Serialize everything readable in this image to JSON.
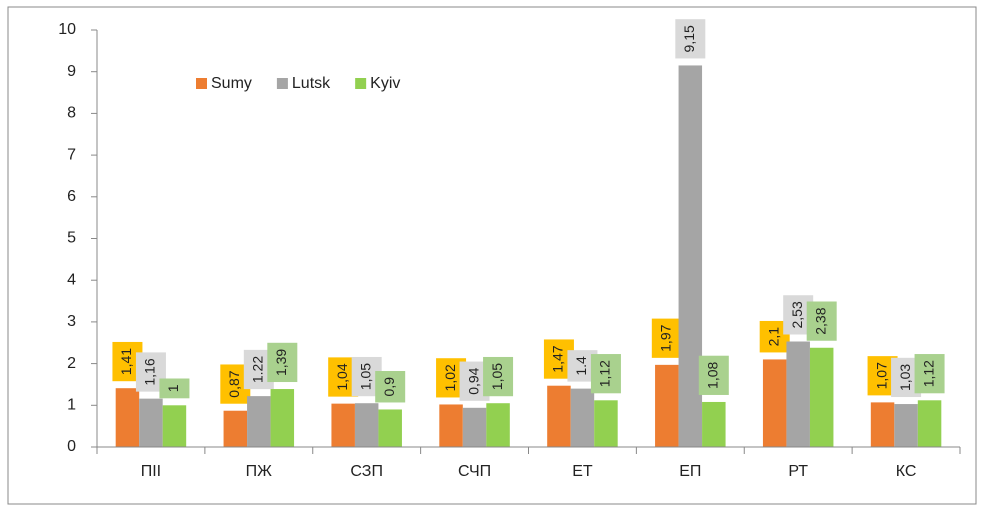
{
  "chart_data": {
    "type": "bar",
    "categories": [
      "ПІІ",
      "ПЖ",
      "СЗП",
      "СЧП",
      "ЕТ",
      "ЕП",
      "РТ",
      "КС"
    ],
    "series": [
      {
        "name": "Sumy",
        "color": "#ed7d31",
        "label_color": "#ffc000",
        "values": [
          1.41,
          0.87,
          1.04,
          1.02,
          1.47,
          1.97,
          2.1,
          1.07
        ],
        "value_labels": [
          "1,41",
          "0,87",
          "1,04",
          "1,02",
          "1,47",
          "1,97",
          "2,1",
          "1,07"
        ]
      },
      {
        "name": "Lutsk",
        "color": "#a5a5a5",
        "label_color": "#d9d9d9",
        "values": [
          1.16,
          1.22,
          1.05,
          0.94,
          1.4,
          9.15,
          2.53,
          1.03
        ],
        "value_labels": [
          "1,16",
          "1.22",
          "1,05",
          "0,94",
          "1.4",
          "9,15",
          "2,53",
          "1,03"
        ]
      },
      {
        "name": "Kyiv",
        "color": "#92d050",
        "label_color": "#a9d18e",
        "values": [
          1,
          1.39,
          0.9,
          1.05,
          1.12,
          1.08,
          2.38,
          1.12
        ],
        "value_labels": [
          "1",
          "1,39",
          "0,9",
          "1,05",
          "1,12",
          "1,08",
          "2,38",
          "1,12"
        ]
      }
    ],
    "ylim": [
      0,
      10
    ],
    "yticks": [
      0,
      1,
      2,
      3,
      4,
      5,
      6,
      7,
      8,
      9,
      10
    ],
    "grid": false,
    "legend": "top-left"
  }
}
